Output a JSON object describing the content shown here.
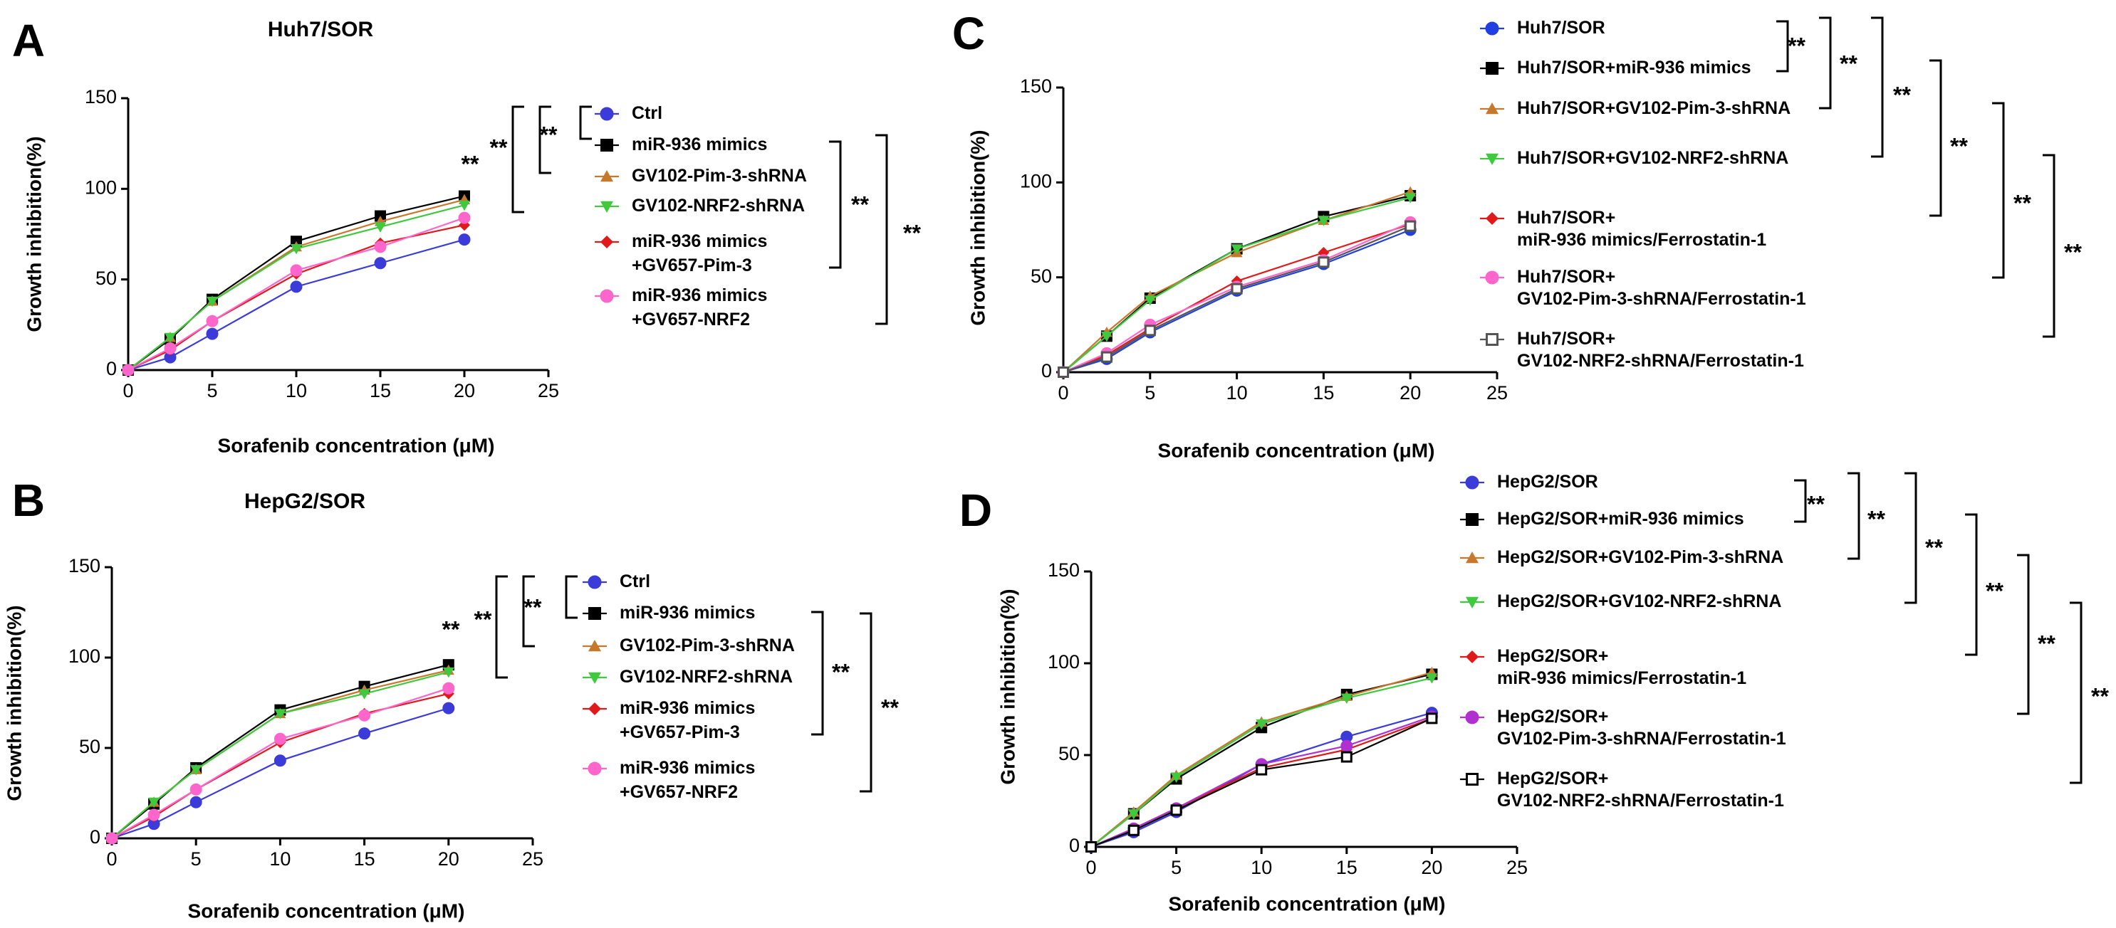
{
  "chart_data": [
    {
      "type": "line",
      "panel": "A",
      "title": "Huh7/SOR",
      "xlabel": "Sorafenib  concentration (μM)",
      "ylabel": "Growth inhibition(%)",
      "xlim": [
        0,
        25
      ],
      "ylim": [
        0,
        150
      ],
      "xticks": [
        0,
        5,
        10,
        15,
        20,
        25
      ],
      "yticks": [
        0,
        50,
        100,
        150
      ],
      "x": [
        0,
        2.5,
        5,
        10,
        15,
        20
      ],
      "series": [
        {
          "name": "Ctrl",
          "marker": "circle",
          "color": "#3b3bd9",
          "values": [
            0,
            7,
            20,
            46,
            59,
            72
          ]
        },
        {
          "name": "miR-936 mimics",
          "marker": "square",
          "color": "#000000",
          "values": [
            0,
            17,
            39,
            71,
            85,
            96
          ]
        },
        {
          "name": "GV102-Pim-3-shRNA",
          "marker": "triangle-up",
          "color": "#c8782a",
          "values": [
            0,
            18,
            38,
            68,
            82,
            94
          ]
        },
        {
          "name": "GV102-NRF2-shRNA",
          "marker": "triangle-down",
          "color": "#3ec93e",
          "values": [
            0,
            18,
            38,
            67,
            79,
            91
          ]
        },
        {
          "name": "miR-936 mimics\n+GV657-Pim-3",
          "marker": "diamond",
          "color": "#e01a1a",
          "values": [
            0,
            11,
            27,
            53,
            70,
            80
          ]
        },
        {
          "name": "miR-936 mimics\n+GV657-NRF2",
          "marker": "circle",
          "color": "#ff66cc",
          "values": [
            0,
            12,
            27,
            55,
            68,
            84
          ]
        }
      ],
      "significance": [
        "**",
        "**",
        "**",
        "**",
        "**"
      ]
    },
    {
      "type": "line",
      "panel": "B",
      "title": "HepG2/SOR",
      "xlabel": "Sorafenib  concentration (μM)",
      "ylabel": "Growth inhibition(%)",
      "xlim": [
        0,
        25
      ],
      "ylim": [
        0,
        150
      ],
      "xticks": [
        0,
        5,
        10,
        15,
        20,
        25
      ],
      "yticks": [
        0,
        50,
        100,
        150
      ],
      "x": [
        0,
        2.5,
        5,
        10,
        15,
        20
      ],
      "series": [
        {
          "name": "Ctrl",
          "marker": "circle",
          "color": "#3b3bd9",
          "values": [
            0,
            8,
            20,
            43,
            58,
            72
          ]
        },
        {
          "name": "miR-936 mimics",
          "marker": "square",
          "color": "#000000",
          "values": [
            0,
            19,
            39,
            71,
            84,
            96
          ]
        },
        {
          "name": "GV102-Pim-3-shRNA",
          "marker": "triangle-up",
          "color": "#c8782a",
          "values": [
            0,
            20,
            38,
            69,
            82,
            93
          ]
        },
        {
          "name": "GV102-NRF2-shRNA",
          "marker": "triangle-down",
          "color": "#3ec93e",
          "values": [
            0,
            20,
            38,
            69,
            80,
            92
          ]
        },
        {
          "name": "miR-936 mimics\n+GV657-Pim-3",
          "marker": "diamond",
          "color": "#e01a1a",
          "values": [
            0,
            12,
            27,
            53,
            69,
            80
          ]
        },
        {
          "name": "miR-936 mimics\n+GV657-NRF2",
          "marker": "circle",
          "color": "#ff66cc",
          "values": [
            0,
            13,
            27,
            55,
            68,
            83
          ]
        }
      ],
      "significance": [
        "**",
        "**",
        "**",
        "**",
        "**"
      ]
    },
    {
      "type": "line",
      "panel": "C",
      "title": "",
      "xlabel": "Sorafenib  concentration (μM)",
      "ylabel": "Growth inhibition(%)",
      "xlim": [
        0,
        25
      ],
      "ylim": [
        0,
        150
      ],
      "xticks": [
        0,
        5,
        10,
        15,
        20,
        25
      ],
      "yticks": [
        0,
        50,
        100,
        150
      ],
      "x": [
        0,
        2.5,
        5,
        10,
        15,
        20
      ],
      "series": [
        {
          "name": "Huh7/SOR",
          "marker": "circle",
          "color": "#1f3fe0",
          "values": [
            0,
            7,
            21,
            43,
            57,
            75
          ]
        },
        {
          "name": "Huh7/SOR+miR-936 mimics",
          "marker": "square",
          "color": "#000000",
          "values": [
            0,
            19,
            39,
            65,
            82,
            93
          ]
        },
        {
          "name": "Huh7/SOR+GV102-Pim-3-shRNA",
          "marker": "triangle-up",
          "color": "#c8782a",
          "values": [
            0,
            21,
            40,
            63,
            80,
            95
          ]
        },
        {
          "name": "Huh7/SOR+GV102-NRF2-shRNA",
          "marker": "triangle-down",
          "color": "#3ec93e",
          "values": [
            0,
            19,
            38,
            65,
            80,
            92
          ]
        },
        {
          "name": "Huh7/SOR+\nmiR-936 mimics/Ferrostatin-1",
          "marker": "diamond",
          "color": "#e01a1a",
          "values": [
            0,
            9,
            23,
            48,
            63,
            78
          ]
        },
        {
          "name": "Huh7/SOR+\nGV102-Pim-3-shRNA/Ferrostatin-1",
          "marker": "circle",
          "color": "#ff66cc",
          "values": [
            0,
            10,
            25,
            45,
            59,
            79
          ]
        },
        {
          "name": "Huh7/SOR+\nGV102-NRF2-shRNA/Ferrostatin-1",
          "marker": "open-square",
          "color": "#555555",
          "values": [
            0,
            8,
            22,
            44,
            58,
            77
          ]
        }
      ],
      "significance": [
        "**",
        "**",
        "**",
        "**",
        "**",
        "**"
      ]
    },
    {
      "type": "line",
      "panel": "D",
      "title": "",
      "xlabel": "Sorafenib  concentration (μM)",
      "ylabel": "Growth inhibition(%)",
      "xlim": [
        0,
        25
      ],
      "ylim": [
        0,
        150
      ],
      "xticks": [
        0,
        5,
        10,
        15,
        20,
        25
      ],
      "yticks": [
        0,
        50,
        100,
        150
      ],
      "x": [
        0,
        2.5,
        5,
        10,
        15,
        20
      ],
      "series": [
        {
          "name": "HepG2/SOR",
          "marker": "circle",
          "color": "#3b3bd9",
          "values": [
            0,
            8,
            19,
            45,
            60,
            73
          ]
        },
        {
          "name": "HepG2/SOR+miR-936 mimics",
          "marker": "square",
          "color": "#000000",
          "values": [
            0,
            18,
            37,
            65,
            83,
            94
          ]
        },
        {
          "name": "HepG2/SOR+GV102-Pim-3-shRNA",
          "marker": "triangle-up",
          "color": "#c8782a",
          "values": [
            0,
            19,
            39,
            68,
            82,
            95
          ]
        },
        {
          "name": "HepG2/SOR+GV102-NRF2-shRNA",
          "marker": "triangle-down",
          "color": "#3ec93e",
          "values": [
            0,
            18,
            38,
            67,
            81,
            92
          ]
        },
        {
          "name": "HepG2/SOR+\nmiR-936 mimics/Ferrostatin-1",
          "marker": "diamond",
          "color": "#e01a1a",
          "values": [
            0,
            10,
            21,
            43,
            53,
            70
          ]
        },
        {
          "name": "HepG2/SOR+\nGV102-Pim-3-shRNA/Ferrostatin-1",
          "marker": "circle",
          "color": "#b030d0",
          "values": [
            0,
            10,
            21,
            45,
            55,
            71
          ]
        },
        {
          "name": "HepG2/SOR+\nGV102-NRF2-shRNA/Ferrostatin-1",
          "marker": "open-square",
          "color": "#000000",
          "values": [
            0,
            9,
            20,
            42,
            49,
            70
          ]
        }
      ],
      "significance": [
        "**",
        "**",
        "**",
        "**",
        "**",
        "**"
      ]
    }
  ]
}
